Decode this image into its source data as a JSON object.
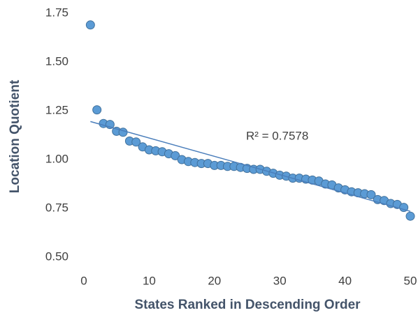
{
  "chart_data": {
    "type": "scatter",
    "xlabel": "States Ranked in Descending Order",
    "ylabel": "Location Quotient",
    "annotation": "R² = 0.7578",
    "x": [
      1,
      2,
      3,
      4,
      5,
      6,
      7,
      8,
      9,
      10,
      11,
      12,
      13,
      14,
      15,
      16,
      17,
      18,
      19,
      20,
      21,
      22,
      23,
      24,
      25,
      26,
      27,
      28,
      29,
      30,
      31,
      32,
      33,
      34,
      35,
      36,
      37,
      38,
      39,
      40,
      41,
      42,
      43,
      44,
      45,
      46,
      47,
      48,
      49,
      50
    ],
    "values": [
      1.69,
      1.255,
      1.185,
      1.18,
      1.145,
      1.14,
      1.095,
      1.09,
      1.065,
      1.05,
      1.045,
      1.04,
      1.03,
      1.02,
      1.0,
      0.99,
      0.985,
      0.98,
      0.98,
      0.97,
      0.97,
      0.965,
      0.965,
      0.96,
      0.955,
      0.95,
      0.95,
      0.94,
      0.93,
      0.92,
      0.915,
      0.905,
      0.905,
      0.9,
      0.895,
      0.89,
      0.875,
      0.87,
      0.855,
      0.845,
      0.835,
      0.83,
      0.825,
      0.82,
      0.795,
      0.79,
      0.775,
      0.77,
      0.755,
      0.71
    ],
    "color": "#5b9bd5",
    "trendline": {
      "x": [
        1,
        50
      ],
      "values": [
        1.195,
        0.735
      ],
      "color": "#4a7ebb"
    },
    "xlim": [
      0,
      50
    ],
    "xticks": [
      0,
      10,
      20,
      30,
      40,
      50
    ],
    "ylim": [
      0.5,
      1.75
    ],
    "yticks": [
      {
        "value": 0.5,
        "label": "0.50"
      },
      {
        "value": 0.75,
        "label": "0.75"
      },
      {
        "value": 1.0,
        "label": "1.00"
      },
      {
        "value": 1.25,
        "label": "1.25"
      },
      {
        "value": 1.5,
        "label": "1.50"
      },
      {
        "value": 1.75,
        "label": "1.75"
      }
    ],
    "grid": false
  }
}
